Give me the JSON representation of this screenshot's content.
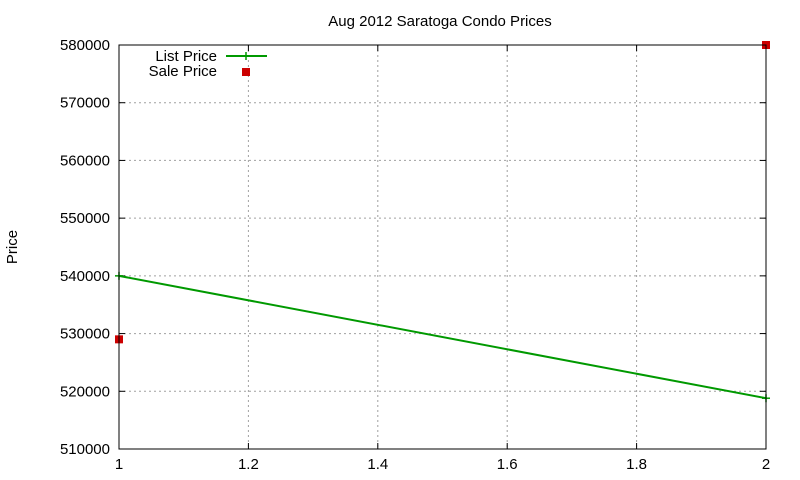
{
  "chart_data": {
    "type": "line",
    "title": "Aug 2012 Saratoga Condo Prices",
    "xlabel": "",
    "ylabel": "Price",
    "xlim": [
      1,
      2
    ],
    "ylim": [
      510000,
      580000
    ],
    "xticks": [
      1,
      1.2,
      1.4,
      1.6,
      1.8,
      2
    ],
    "xtick_labels": [
      "1",
      "1.2",
      "1.4",
      "1.6",
      "1.8",
      "2"
    ],
    "yticks": [
      510000,
      520000,
      530000,
      540000,
      550000,
      560000,
      570000,
      580000
    ],
    "ytick_labels": [
      "510000",
      "520000",
      "530000",
      "540000",
      "550000",
      "560000",
      "570000",
      "580000"
    ],
    "grid": true,
    "legend_position": "top-left",
    "series": [
      {
        "name": "List Price",
        "style": "linespoints",
        "color": "#009900",
        "x": [
          1,
          2
        ],
        "y": [
          540000,
          518800
        ]
      },
      {
        "name": "Sale Price",
        "style": "points",
        "color": "#cc0000",
        "x": [
          1,
          2
        ],
        "y": [
          529000,
          580000
        ]
      }
    ]
  }
}
